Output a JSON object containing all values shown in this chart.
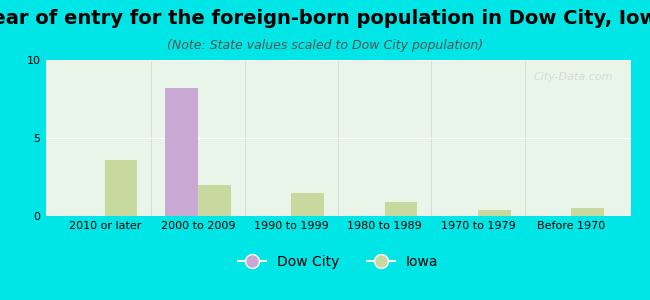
{
  "title": "Year of entry for the foreign-born population in Dow City, Iowa",
  "subtitle": "(Note: State values scaled to Dow City population)",
  "categories": [
    "2010 or later",
    "2000 to 2009",
    "1990 to 1999",
    "1980 to 1989",
    "1970 to 1979",
    "Before 1970"
  ],
  "dow_city": [
    0,
    8.2,
    0,
    0,
    0,
    0
  ],
  "iowa": [
    3.6,
    2.0,
    1.5,
    0.9,
    0.4,
    0.5
  ],
  "dow_city_color": "#c9a8d4",
  "iowa_color": "#c8d9a0",
  "background_outer": "#00e5e5",
  "background_inner": "#e8f5e8",
  "ylim": [
    0,
    10
  ],
  "yticks": [
    0,
    5,
    10
  ],
  "bar_width": 0.35,
  "title_fontsize": 14,
  "subtitle_fontsize": 9,
  "tick_fontsize": 8,
  "legend_fontsize": 10,
  "watermark": "City-Data.com"
}
